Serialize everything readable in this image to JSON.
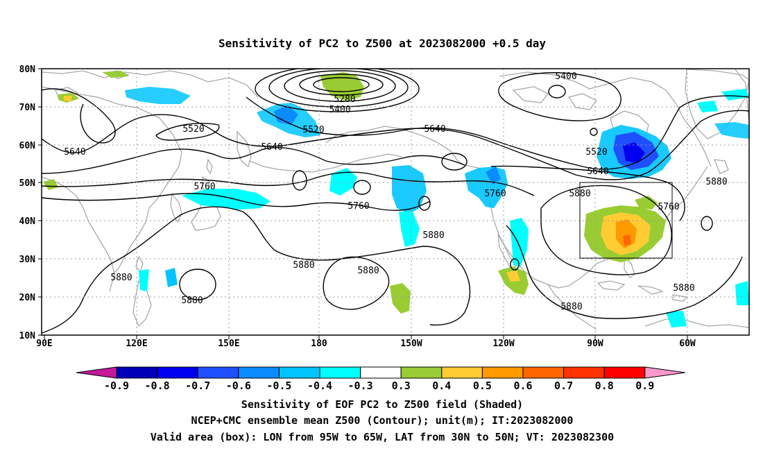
{
  "title": "Sensitivity of PC2 to Z500 at 2023082000 +0.5 day",
  "map": {
    "lat_ticks": [
      "80N",
      "70N",
      "60N",
      "50N",
      "40N",
      "30N",
      "20N",
      "10N"
    ],
    "lon_ticks": [
      "90E",
      "120E",
      "150E",
      "180",
      "150W",
      "120W",
      "90W",
      "60W"
    ],
    "contour_labels": [
      "5400",
      "5280",
      "5400",
      "5520",
      "5520",
      "5640",
      "5640",
      "5640",
      "5520",
      "5640",
      "5760",
      "5760",
      "5760",
      "5760",
      "5880",
      "5880",
      "5880",
      "5880",
      "5880",
      "5880",
      "5880",
      "5880"
    ],
    "valid_box": {
      "lon_min": -95,
      "lon_max": -65,
      "lat_min": 30,
      "lat_max": 50
    },
    "colors": {
      "contour": "#000000",
      "land": "#a8a8a8",
      "grid": "#999999"
    }
  },
  "colorbar": {
    "labels": [
      "-0.9",
      "-0.8",
      "-0.7",
      "-0.6",
      "-0.5",
      "-0.4",
      "-0.3",
      "0.3",
      "0.4",
      "0.5",
      "0.6",
      "0.7",
      "0.8",
      "0.9"
    ],
    "colors": [
      "#c41a9a",
      "#0000b8",
      "#0000f0",
      "#1e50ff",
      "#0a8cff",
      "#00c4ff",
      "#00ffff",
      "#ffffff",
      "#99cc33",
      "#ffcc33",
      "#ff9900",
      "#ff6600",
      "#ff3300",
      "#ff0000",
      "#ff99cc"
    ]
  },
  "caption": {
    "line1": "Sensitivity of EOF PC2 to Z500 field (Shaded)",
    "line2": "NCEP+CMC ensemble mean Z500 (Contour); unit(m); IT:2023082000",
    "line3": "Valid area (box): LON from 95W to 65W, LAT from 30N to 50N; VT: 2023082300"
  }
}
